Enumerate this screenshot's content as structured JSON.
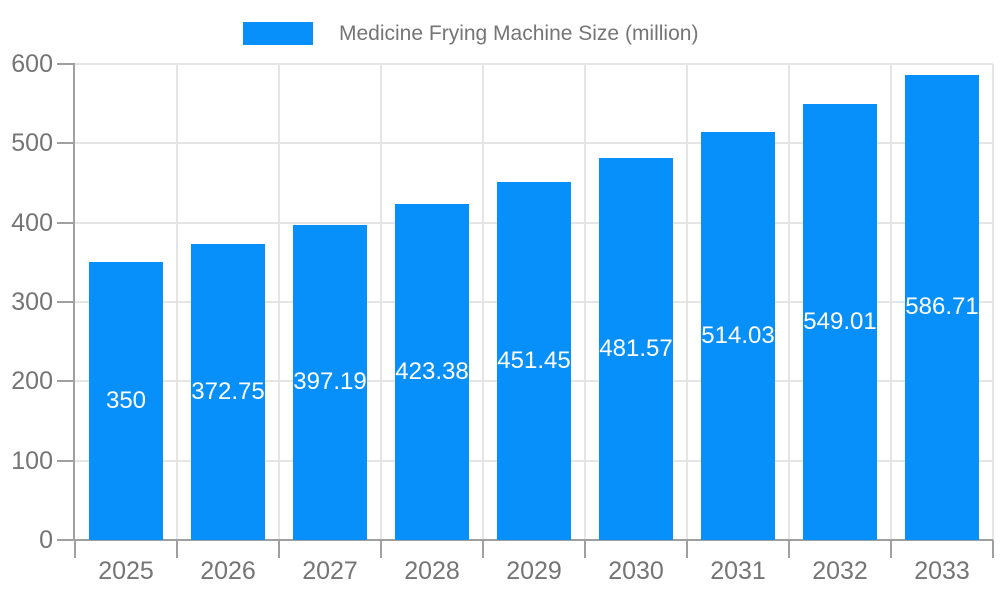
{
  "chart_data": {
    "type": "bar",
    "title": "",
    "legend": "Medicine Frying Machine Size (million)",
    "legend_position": "top",
    "categories": [
      "2025",
      "2026",
      "2027",
      "2028",
      "2029",
      "2030",
      "2031",
      "2032",
      "2033"
    ],
    "values": [
      350,
      372.75,
      397.19,
      423.38,
      451.45,
      481.57,
      514.03,
      549.01,
      586.71
    ],
    "value_labels": [
      "350",
      "372.75",
      "397.19",
      "423.38",
      "451.45",
      "481.57",
      "514.03",
      "549.01",
      "586.71"
    ],
    "xlabel": "",
    "ylabel": "",
    "ylim": [
      0,
      600
    ],
    "yticks": [
      0,
      100,
      200,
      300,
      400,
      500,
      600
    ],
    "grid": true,
    "colors": {
      "bar": "#0890fa",
      "grid": "#e5e5e5",
      "axis": "#a0a0a0",
      "tick_label": "#757575",
      "legend_text": "#757575",
      "value_label": "#ffffff",
      "background": "#ffffff"
    }
  }
}
